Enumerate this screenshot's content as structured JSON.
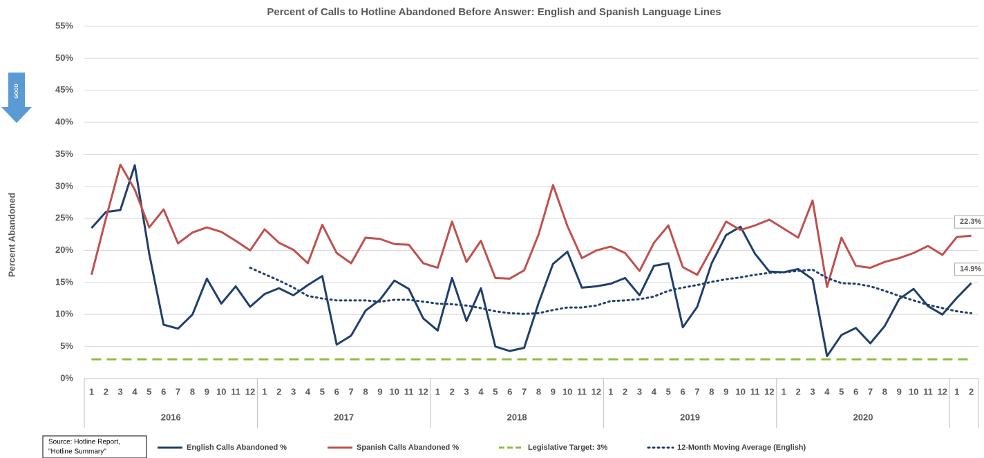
{
  "chart_data": {
    "type": "line",
    "title": "Percent of Calls to Hotline Abandoned Before Answer: English and Spanish Language Lines",
    "y_axis_label": "Percent Abandoned",
    "indicator": "GOOD",
    "source": [
      "Source: Hotline Report,",
      "\"Hotline Summary\""
    ],
    "categories": [
      "1",
      "2",
      "3",
      "4",
      "5",
      "6",
      "7",
      "8",
      "9",
      "10",
      "11",
      "12",
      "1",
      "2",
      "3",
      "4",
      "5",
      "6",
      "7",
      "8",
      "9",
      "10",
      "11",
      "12",
      "1",
      "2",
      "3",
      "4",
      "5",
      "6",
      "7",
      "8",
      "9",
      "10",
      "11",
      "12",
      "1",
      "2",
      "3",
      "4",
      "5",
      "6",
      "7",
      "8",
      "9",
      "10",
      "11",
      "12",
      "1",
      "2",
      "3",
      "4",
      "5",
      "6",
      "7",
      "8",
      "9",
      "10",
      "11",
      "12",
      "1",
      "2"
    ],
    "groups": [
      "2016",
      "2016",
      "2016",
      "2016",
      "2016",
      "2016",
      "2016",
      "2016",
      "2016",
      "2016",
      "2016",
      "2016",
      "2017",
      "2017",
      "2017",
      "2017",
      "2017",
      "2017",
      "2017",
      "2017",
      "2017",
      "2017",
      "2017",
      "2017",
      "2018",
      "2018",
      "2018",
      "2018",
      "2018",
      "2018",
      "2018",
      "2018",
      "2018",
      "2018",
      "2018",
      "2018",
      "2019",
      "2019",
      "2019",
      "2019",
      "2019",
      "2019",
      "2019",
      "2019",
      "2019",
      "2019",
      "2019",
      "2019",
      "2020",
      "2020",
      "2020",
      "2020",
      "2020",
      "2020",
      "2020",
      "2020",
      "2020",
      "2020",
      "2020",
      "2020",
      null,
      null
    ],
    "ylim": [
      0,
      55
    ],
    "yticks": [
      {
        "value": 0,
        "label": "0%"
      },
      {
        "value": 5,
        "label": "5%"
      },
      {
        "value": 10,
        "label": "10%"
      },
      {
        "value": 15,
        "label": "15%"
      },
      {
        "value": 20,
        "label": "20%"
      },
      {
        "value": 25,
        "label": "25%"
      },
      {
        "value": 30,
        "label": "30%"
      },
      {
        "value": 35,
        "label": "35%"
      },
      {
        "value": 40,
        "label": "40%"
      },
      {
        "value": 45,
        "label": "45%"
      },
      {
        "value": 50,
        "label": "50%"
      },
      {
        "value": 55,
        "label": "55%"
      }
    ],
    "grid": true,
    "legend": "bottom",
    "series": [
      {
        "name": "English Calls Abandoned %",
        "color": "#1f3f6e",
        "style": "solid",
        "values": [
          23.5,
          26,
          26.3,
          33.3,
          19.5,
          8.4,
          7.8,
          10,
          15.6,
          11.7,
          14.4,
          11.2,
          13.2,
          14.1,
          13,
          14.6,
          16,
          5.3,
          6.7,
          10.6,
          12.3,
          15.3,
          14,
          9.4,
          7.5,
          15.7,
          9,
          14.1,
          5,
          4.3,
          4.8,
          11.8,
          17.9,
          19.8,
          14.2,
          14.4,
          14.8,
          15.7,
          13,
          17.6,
          18,
          8,
          11.2,
          18,
          22.4,
          23.7,
          19.5,
          16.7,
          16.6,
          17.1,
          15.5,
          3.5,
          6.8,
          7.9,
          5.5,
          8.2,
          12.4,
          14,
          11.3,
          10,
          12.6,
          14.9
        ],
        "value_labels": [
          null,
          null,
          null,
          null,
          null,
          null,
          null,
          null,
          null,
          null,
          null,
          null,
          null,
          null,
          null,
          null,
          null,
          null,
          null,
          null,
          null,
          null,
          null,
          null,
          null,
          null,
          null,
          null,
          null,
          null,
          null,
          null,
          null,
          null,
          null,
          null,
          null,
          null,
          null,
          null,
          null,
          null,
          null,
          null,
          null,
          null,
          null,
          null,
          null,
          null,
          null,
          null,
          null,
          null,
          null,
          null,
          null,
          null,
          null,
          null,
          null,
          "14.9%"
        ]
      },
      {
        "name": "Spanish Calls Abandoned %",
        "color": "#c0504d",
        "style": "solid",
        "values": [
          16.2,
          25,
          33.4,
          29.5,
          23.6,
          26.4,
          21.1,
          22.8,
          23.6,
          22.9,
          21.5,
          20,
          23.3,
          21.2,
          20.1,
          18,
          24,
          19.6,
          18,
          22,
          21.8,
          21,
          20.9,
          18,
          17.3,
          24.5,
          18.2,
          21.5,
          15.7,
          15.6,
          16.9,
          22.5,
          30.2,
          23.8,
          18.8,
          20,
          20.6,
          19.6,
          16.8,
          21.2,
          23.9,
          17.4,
          16.2,
          20.3,
          24.5,
          23.2,
          23.9,
          24.8,
          23.4,
          22,
          27.8,
          14.3,
          22,
          17.6,
          17.3,
          18.2,
          18.8,
          19.6,
          20.7,
          19.3,
          22.1,
          22.3
        ],
        "value_labels": [
          null,
          null,
          null,
          null,
          null,
          null,
          null,
          null,
          null,
          null,
          null,
          null,
          null,
          null,
          null,
          null,
          null,
          null,
          null,
          null,
          null,
          null,
          null,
          null,
          null,
          null,
          null,
          null,
          null,
          null,
          null,
          null,
          null,
          null,
          null,
          null,
          null,
          null,
          null,
          null,
          null,
          null,
          null,
          null,
          null,
          null,
          null,
          null,
          null,
          null,
          null,
          null,
          null,
          null,
          null,
          null,
          null,
          null,
          null,
          null,
          null,
          "22.3%"
        ]
      },
      {
        "name": "Legislative Target: 3%",
        "color": "#8fbc45",
        "style": "dashed",
        "values": [
          3,
          3,
          3,
          3,
          3,
          3,
          3,
          3,
          3,
          3,
          3,
          3,
          3,
          3,
          3,
          3,
          3,
          3,
          3,
          3,
          3,
          3,
          3,
          3,
          3,
          3,
          3,
          3,
          3,
          3,
          3,
          3,
          3,
          3,
          3,
          3,
          3,
          3,
          3,
          3,
          3,
          3,
          3,
          3,
          3,
          3,
          3,
          3,
          3,
          3,
          3,
          3,
          3,
          3,
          3,
          3,
          3,
          3,
          3,
          3,
          3,
          3
        ]
      },
      {
        "name": "12-Month Moving Average (English)",
        "color": "#1f3f6e",
        "style": "dotted",
        "values": [
          null,
          null,
          null,
          null,
          null,
          null,
          null,
          null,
          null,
          null,
          null,
          17.3,
          16.3,
          15.3,
          14.2,
          12.9,
          12.5,
          12.2,
          12.2,
          12.2,
          12,
          12.3,
          12.3,
          12,
          11.7,
          11.6,
          11.4,
          11,
          10.5,
          10.2,
          10.1,
          10.2,
          10.7,
          11.1,
          11.1,
          11.4,
          12.1,
          12.2,
          12.4,
          12.8,
          13.7,
          14.2,
          14.6,
          15.1,
          15.5,
          15.8,
          16.2,
          16.5,
          16.6,
          16.8,
          17,
          15.7,
          14.9,
          14.8,
          14.4,
          13.7,
          12.9,
          12.2,
          11.5,
          11,
          10.5,
          10.2
        ]
      }
    ]
  }
}
